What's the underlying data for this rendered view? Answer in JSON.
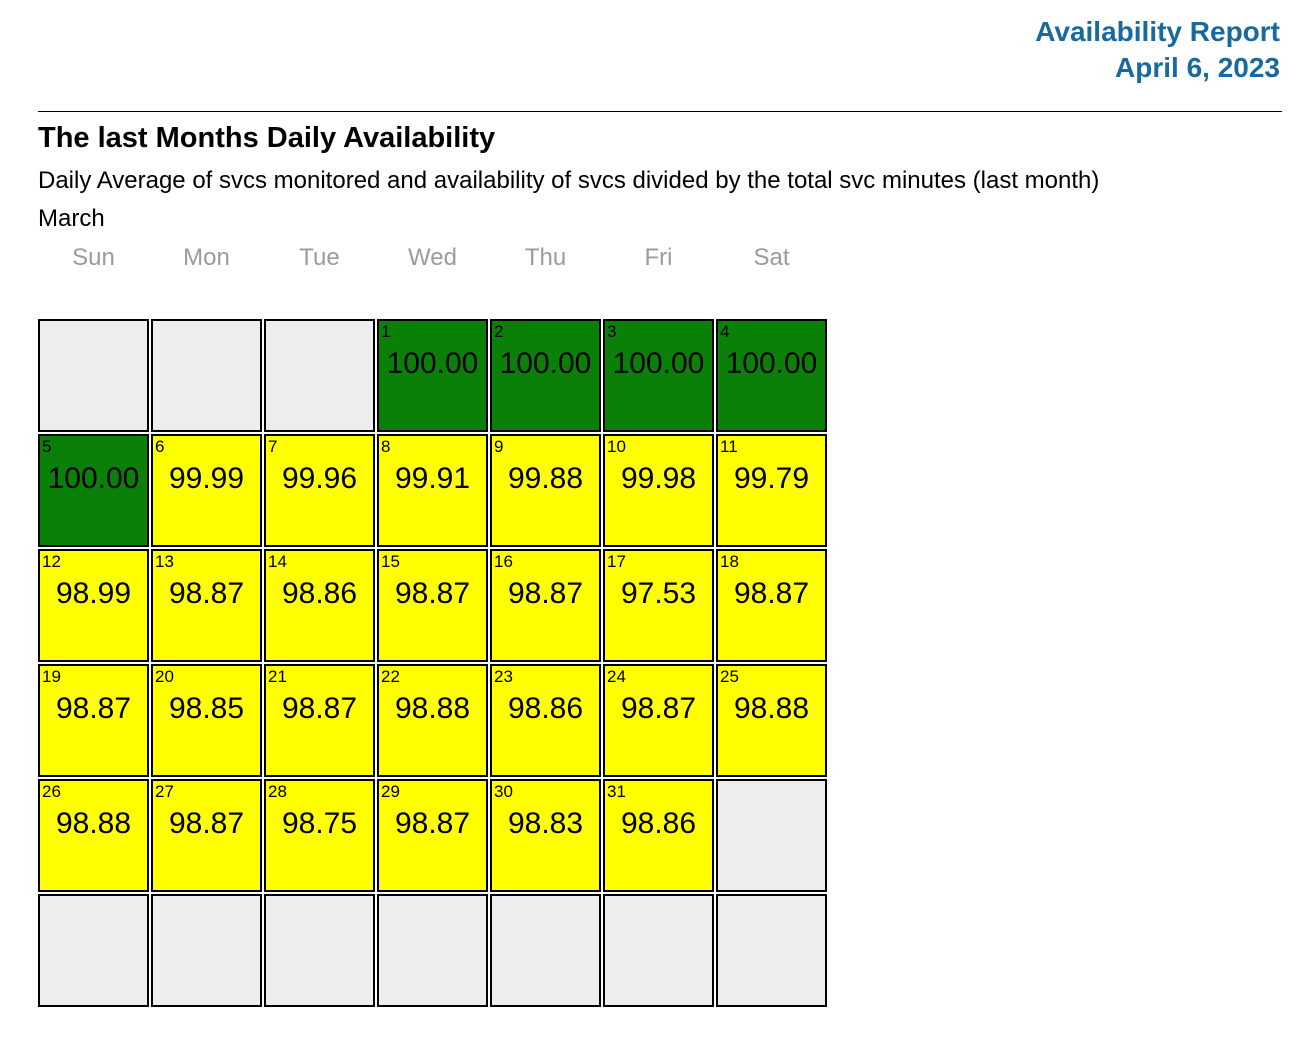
{
  "header": {
    "title": "Availability Report",
    "date": "April 6, 2023"
  },
  "section": {
    "heading": "The last Months Daily Availability",
    "description": "Daily Average of svcs monitored and availability of svcs divided by the total svc minutes (last month)",
    "month": "March"
  },
  "calendar": {
    "weekdays": [
      "Sun",
      "Mon",
      "Tue",
      "Wed",
      "Thu",
      "Fri",
      "Sat"
    ],
    "rows": [
      [
        {
          "state": "empty"
        },
        {
          "state": "empty"
        },
        {
          "state": "empty"
        },
        {
          "state": "green",
          "day": "1",
          "value": "100.00"
        },
        {
          "state": "green",
          "day": "2",
          "value": "100.00"
        },
        {
          "state": "green",
          "day": "3",
          "value": "100.00"
        },
        {
          "state": "green",
          "day": "4",
          "value": "100.00"
        }
      ],
      [
        {
          "state": "green",
          "day": "5",
          "value": "100.00"
        },
        {
          "state": "yellow",
          "day": "6",
          "value": "99.99"
        },
        {
          "state": "yellow",
          "day": "7",
          "value": "99.96"
        },
        {
          "state": "yellow",
          "day": "8",
          "value": "99.91"
        },
        {
          "state": "yellow",
          "day": "9",
          "value": "99.88"
        },
        {
          "state": "yellow",
          "day": "10",
          "value": "99.98"
        },
        {
          "state": "yellow",
          "day": "11",
          "value": "99.79"
        }
      ],
      [
        {
          "state": "yellow",
          "day": "12",
          "value": "98.99"
        },
        {
          "state": "yellow",
          "day": "13",
          "value": "98.87"
        },
        {
          "state": "yellow",
          "day": "14",
          "value": "98.86"
        },
        {
          "state": "yellow",
          "day": "15",
          "value": "98.87"
        },
        {
          "state": "yellow",
          "day": "16",
          "value": "98.87"
        },
        {
          "state": "yellow",
          "day": "17",
          "value": "97.53"
        },
        {
          "state": "yellow",
          "day": "18",
          "value": "98.87"
        }
      ],
      [
        {
          "state": "yellow",
          "day": "19",
          "value": "98.87"
        },
        {
          "state": "yellow",
          "day": "20",
          "value": "98.85"
        },
        {
          "state": "yellow",
          "day": "21",
          "value": "98.87"
        },
        {
          "state": "yellow",
          "day": "22",
          "value": "98.88"
        },
        {
          "state": "yellow",
          "day": "23",
          "value": "98.86"
        },
        {
          "state": "yellow",
          "day": "24",
          "value": "98.87"
        },
        {
          "state": "yellow",
          "day": "25",
          "value": "98.88"
        }
      ],
      [
        {
          "state": "yellow",
          "day": "26",
          "value": "98.88"
        },
        {
          "state": "yellow",
          "day": "27",
          "value": "98.87"
        },
        {
          "state": "yellow",
          "day": "28",
          "value": "98.75"
        },
        {
          "state": "yellow",
          "day": "29",
          "value": "98.87"
        },
        {
          "state": "yellow",
          "day": "30",
          "value": "98.83"
        },
        {
          "state": "yellow",
          "day": "31",
          "value": "98.86"
        },
        {
          "state": "empty"
        }
      ],
      [
        {
          "state": "empty"
        },
        {
          "state": "empty"
        },
        {
          "state": "empty"
        },
        {
          "state": "empty"
        },
        {
          "state": "empty"
        },
        {
          "state": "empty"
        },
        {
          "state": "empty"
        }
      ]
    ]
  },
  "colors": {
    "accent": "#17699e",
    "green": "#0a8008",
    "yellow": "#ffff00",
    "empty": "#ededed",
    "weekday_gray": "#9b9b9b"
  }
}
